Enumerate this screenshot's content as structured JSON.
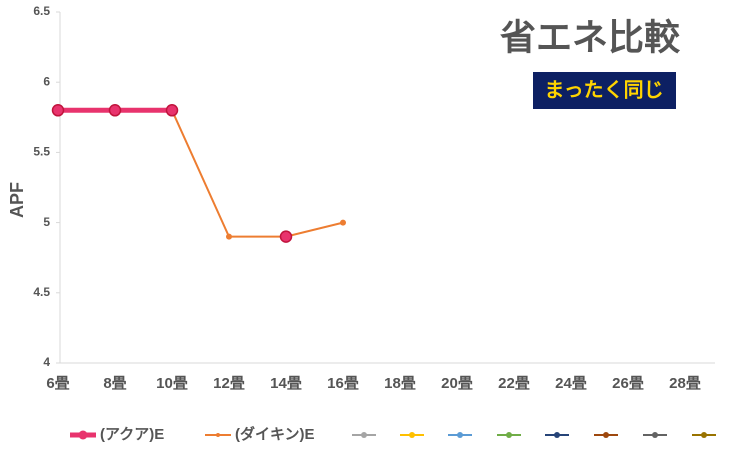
{
  "chart_data": {
    "type": "line",
    "title": "省エネ比較",
    "badge": "まったく同じ",
    "y_label": "APF",
    "categories": [
      "6畳",
      "8畳",
      "10畳",
      "12畳",
      "14畳",
      "16畳",
      "18畳",
      "20畳",
      "22畳",
      "24畳",
      "26畳",
      "28畳"
    ],
    "series": [
      {
        "name": "(アクア)E",
        "color": "#e8336d",
        "values": [
          5.8,
          5.8,
          5.8,
          null,
          4.9,
          null,
          null,
          null,
          null,
          null,
          null,
          null
        ]
      },
      {
        "name": "(ダイキン)E",
        "color": "#ed7d31",
        "values": [
          5.8,
          5.8,
          5.8,
          4.9,
          4.9,
          5.0,
          null,
          null,
          null,
          null,
          null,
          null
        ]
      }
    ],
    "ylim": [
      4,
      6.5
    ],
    "yticks": [
      4,
      4.5,
      5,
      5.5,
      6,
      6.5
    ],
    "grid": false
  }
}
